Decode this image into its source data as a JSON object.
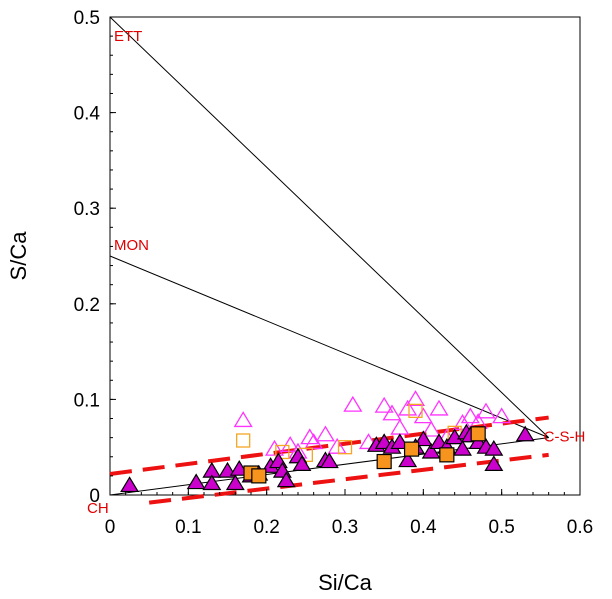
{
  "chart_data": {
    "type": "scatter",
    "title": "",
    "xlabel": "Si/Ca",
    "ylabel": "S/Ca",
    "xlim": [
      0,
      0.6
    ],
    "ylim": [
      0,
      0.5
    ],
    "x_ticks": [
      "0",
      "0.1",
      "0.2",
      "0.3",
      "0.4",
      "0.5",
      "0.6"
    ],
    "y_ticks": [
      "0",
      "0.1",
      "0.2",
      "0.3",
      "0.4",
      "0.5"
    ],
    "grid": false,
    "legend": "none",
    "colors": {
      "open_triangle": "#ff33ff",
      "open_square": "#f5a623",
      "filled_triangle": "#cc00cc",
      "filled_square": "#f7941d",
      "tie_line": "#000000",
      "bounds": "#ee1111",
      "labels": "#e00000"
    },
    "annotations": [
      {
        "text": "ETT",
        "x": 0,
        "y": 0.5
      },
      {
        "text": "MON",
        "x": 0,
        "y": 0.25
      },
      {
        "text": "C-S-H",
        "x": 0.56,
        "y": 0.06
      },
      {
        "text": "CH",
        "x": 0,
        "y": 0
      }
    ],
    "tie_lines": [
      {
        "x": [
          0,
          0.56
        ],
        "y": [
          0.5,
          0.06
        ]
      },
      {
        "x": [
          0,
          0.56
        ],
        "y": [
          0.25,
          0.06
        ]
      },
      {
        "x": [
          0,
          0.56
        ],
        "y": [
          0,
          0.06
        ]
      }
    ],
    "bound_lines": [
      {
        "x": [
          0,
          0.56
        ],
        "y": [
          0.022,
          0.081
        ]
      },
      {
        "x": [
          0.05,
          0.56
        ],
        "y": [
          -0.008,
          0.042
        ]
      }
    ],
    "series": [
      {
        "marker": "open-triangle",
        "x": [
          0.17,
          0.24,
          0.255,
          0.26,
          0.275,
          0.29,
          0.31,
          0.35,
          0.36,
          0.38,
          0.39,
          0.4,
          0.41,
          0.42,
          0.43,
          0.45,
          0.46,
          0.47,
          0.48,
          0.5,
          0.21,
          0.23,
          0.33,
          0.37
        ],
        "y": [
          0.078,
          0.045,
          0.06,
          0.055,
          0.063,
          0.05,
          0.094,
          0.093,
          0.085,
          0.09,
          0.1,
          0.082,
          0.068,
          0.09,
          0.06,
          0.075,
          0.082,
          0.076,
          0.087,
          0.082,
          0.048,
          0.052,
          0.055,
          0.07
        ]
      },
      {
        "marker": "open-square",
        "x": [
          0.17,
          0.22,
          0.25,
          0.3,
          0.39,
          0.44
        ],
        "y": [
          0.057,
          0.045,
          0.042,
          0.05,
          0.088,
          0.065
        ]
      },
      {
        "marker": "filled-triangle",
        "x": [
          0.025,
          0.11,
          0.13,
          0.13,
          0.15,
          0.16,
          0.165,
          0.18,
          0.19,
          0.205,
          0.215,
          0.22,
          0.225,
          0.24,
          0.245,
          0.275,
          0.28,
          0.34,
          0.35,
          0.36,
          0.37,
          0.38,
          0.39,
          0.4,
          0.41,
          0.42,
          0.43,
          0.44,
          0.45,
          0.455,
          0.46,
          0.47,
          0.48,
          0.49,
          0.49,
          0.53
        ],
        "y": [
          0.01,
          0.013,
          0.025,
          0.012,
          0.025,
          0.012,
          0.027,
          0.02,
          0.022,
          0.03,
          0.035,
          0.025,
          0.015,
          0.04,
          0.032,
          0.036,
          0.035,
          0.052,
          0.055,
          0.05,
          0.055,
          0.036,
          0.05,
          0.058,
          0.045,
          0.055,
          0.05,
          0.06,
          0.048,
          0.065,
          0.062,
          0.055,
          0.05,
          0.032,
          0.048,
          0.063
        ]
      },
      {
        "marker": "filled-square",
        "x": [
          0.18,
          0.19,
          0.35,
          0.385,
          0.43,
          0.47
        ],
        "y": [
          0.023,
          0.02,
          0.035,
          0.048,
          0.042,
          0.064
        ]
      }
    ]
  }
}
